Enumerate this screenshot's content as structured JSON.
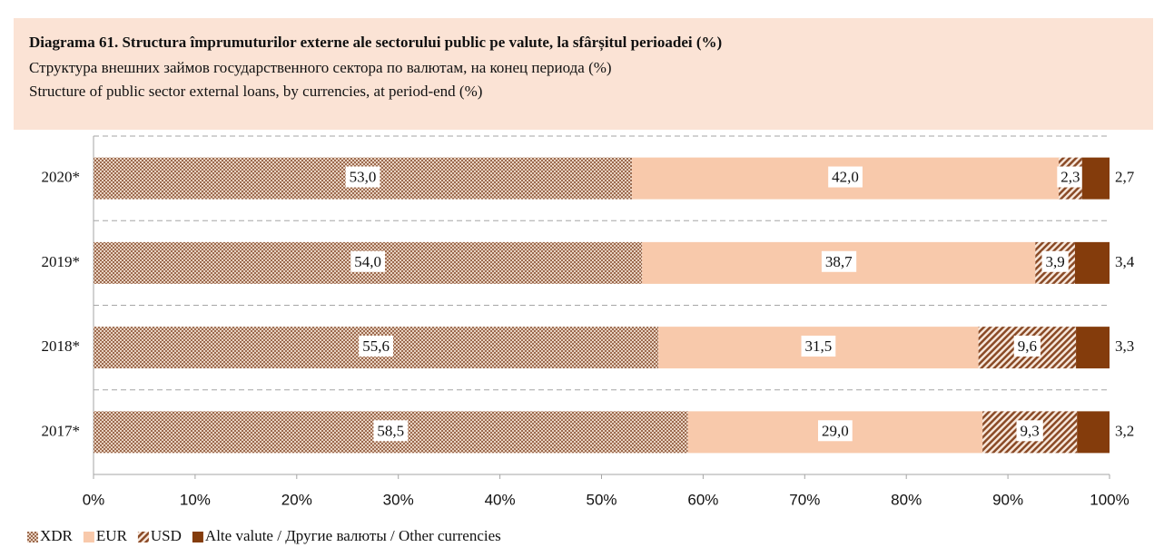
{
  "chart_data": {
    "type": "stacked_barh",
    "title": "Diagrama 61. Structura împrumuturilor externe ale sectorului public pe valute, la sfârșitul perioadei (%)",
    "subtitle_ru": "Структура внешних займов государственного сектора по валютам, на конец периода (%)",
    "subtitle_en": "Structure of public sector external loans, by currencies, at period-end (%)",
    "categories": [
      "2020*",
      "2019*",
      "2018*",
      "2017*"
    ],
    "series": [
      {
        "name": "XDR",
        "color": "#9c6a4e",
        "pattern": "dots",
        "values": [
          53.0,
          54.0,
          55.6,
          58.5
        ],
        "value_labels": [
          "53,0",
          "54,0",
          "55,6",
          "58,5"
        ]
      },
      {
        "name": "EUR",
        "color": "#f8c9ab",
        "pattern": "solid",
        "values": [
          42.0,
          38.7,
          31.5,
          29.0
        ],
        "value_labels": [
          "42,0",
          "38,7",
          "31,5",
          "29,0"
        ]
      },
      {
        "name": "USD",
        "color": "#8a4a26",
        "pattern": "hatch",
        "values": [
          2.3,
          3.9,
          9.6,
          9.3
        ],
        "value_labels": [
          "2,3",
          "3,9",
          "9,6",
          "9,3"
        ]
      },
      {
        "name": "Alte valute / Другие валюты / Other currencies",
        "color": "#843c0c",
        "pattern": "solid",
        "values": [
          2.7,
          3.4,
          3.3,
          3.2
        ],
        "value_labels": [
          "2,7",
          "3,4",
          "3,3",
          "3,2"
        ]
      }
    ],
    "xlim": [
      0,
      100
    ],
    "xticks": [
      {
        "value": 0,
        "label": "0%"
      },
      {
        "value": 10,
        "label": "10%"
      },
      {
        "value": 20,
        "label": "20%"
      },
      {
        "value": 30,
        "label": "30%"
      },
      {
        "value": 40,
        "label": "40%"
      },
      {
        "value": 50,
        "label": "50%"
      },
      {
        "value": 60,
        "label": "60%"
      },
      {
        "value": 70,
        "label": "70%"
      },
      {
        "value": 80,
        "label": "80%"
      },
      {
        "value": 90,
        "label": "90%"
      },
      {
        "value": 100,
        "label": "100%"
      }
    ],
    "legend": "bottom-left"
  }
}
